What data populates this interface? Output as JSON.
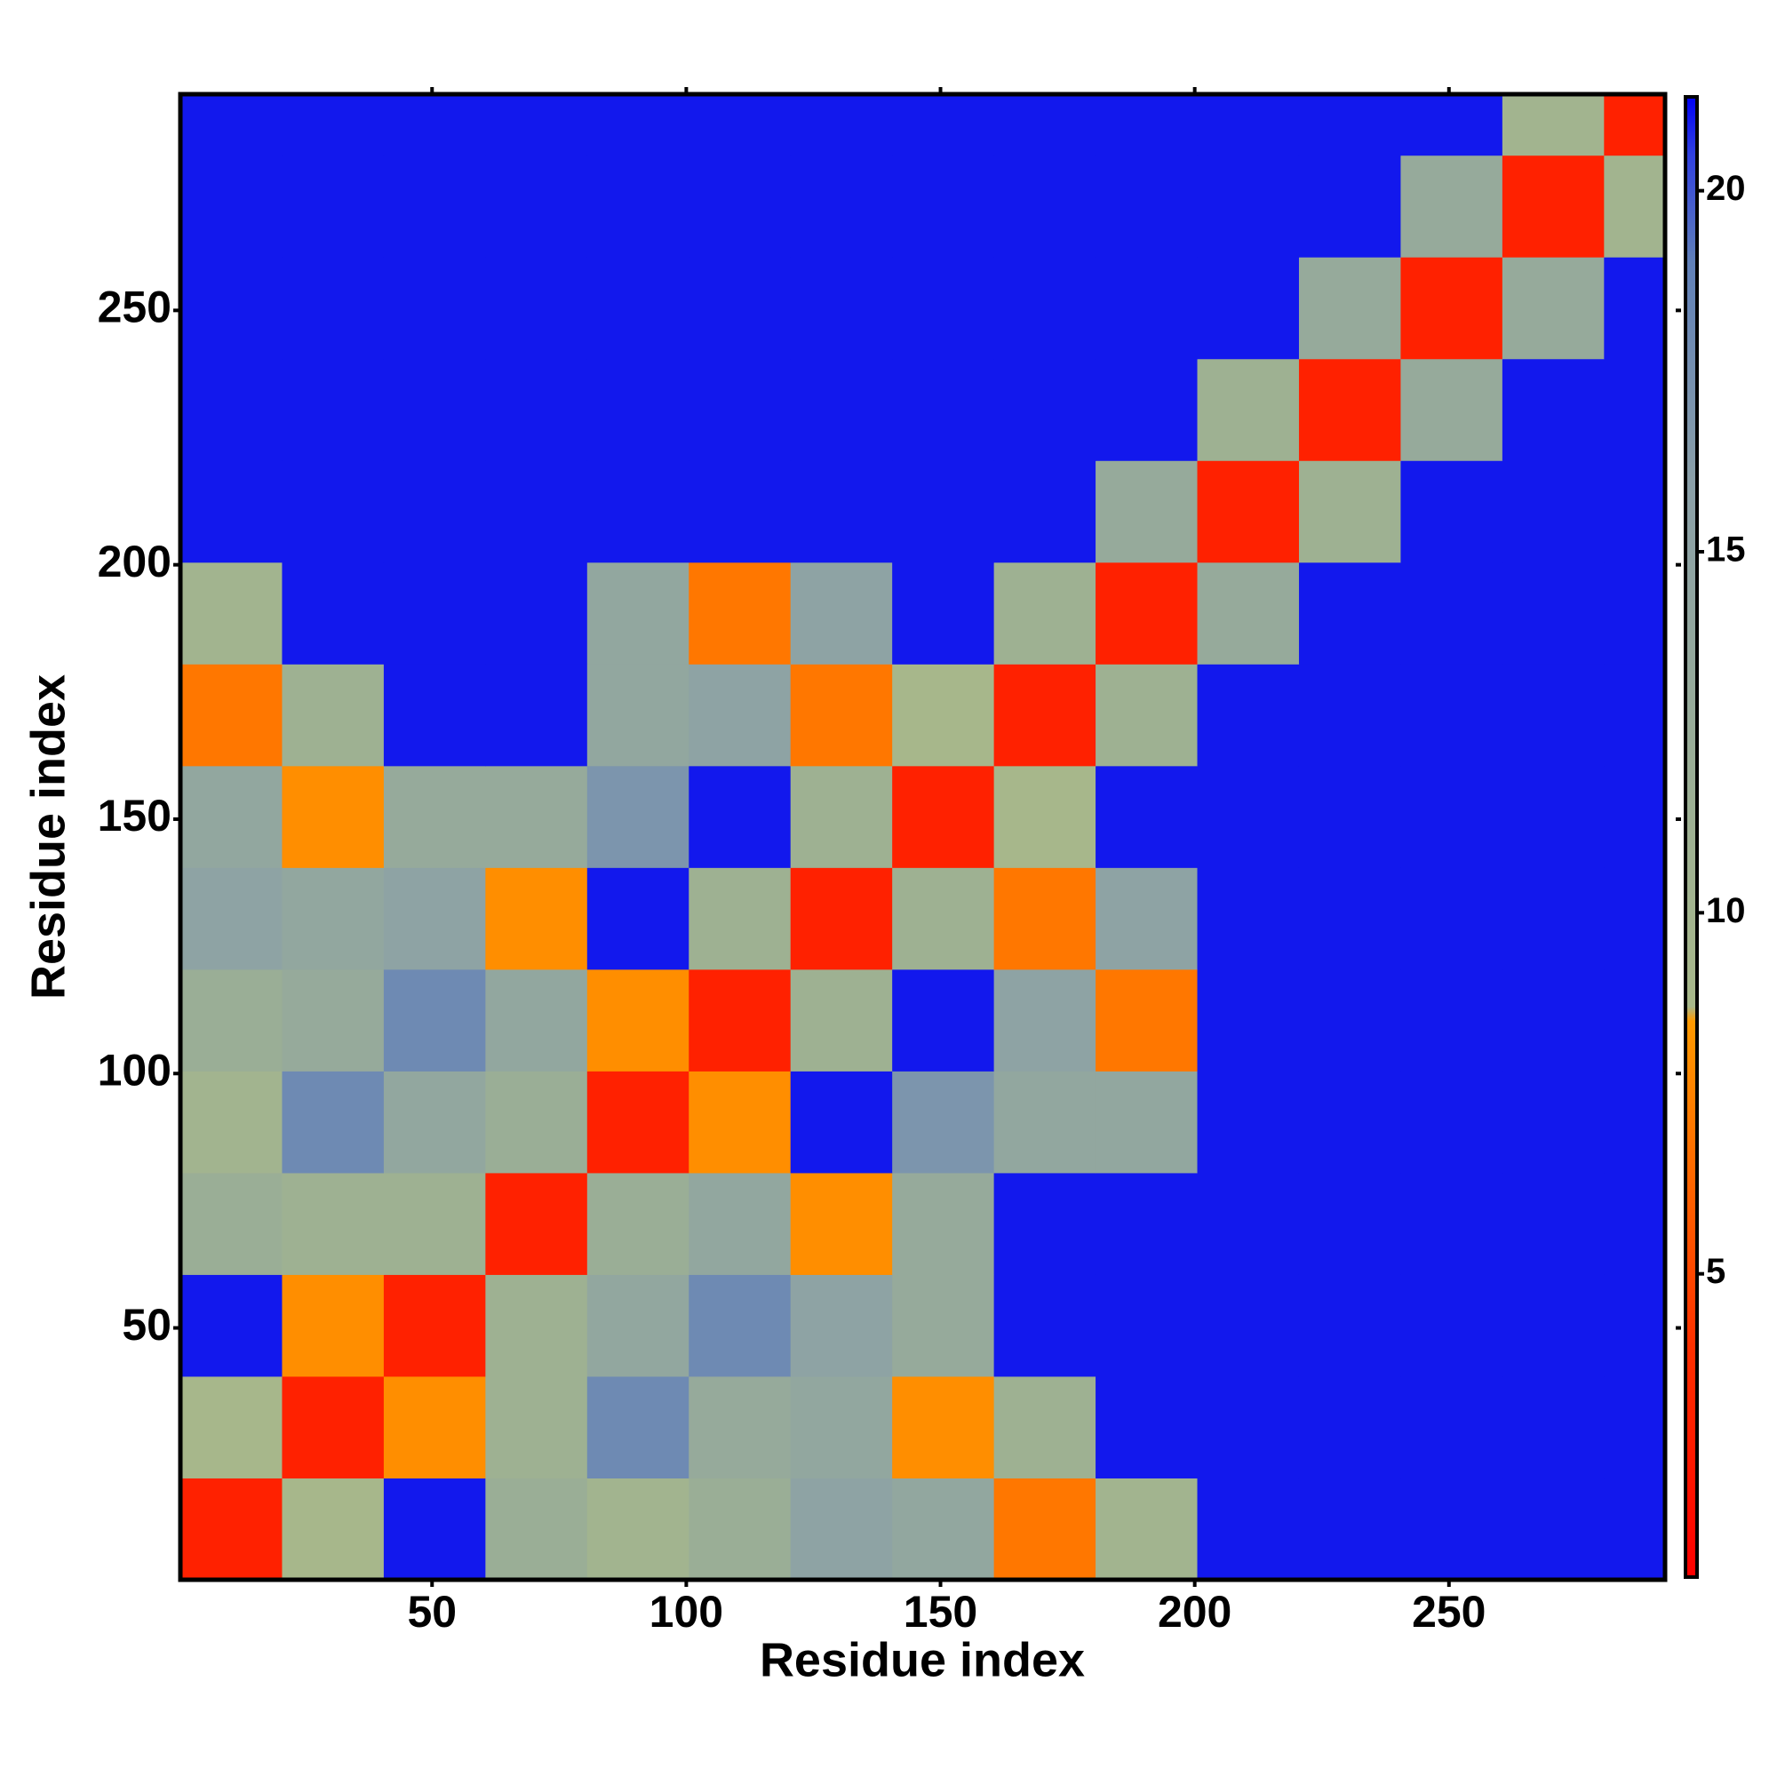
{
  "chart_data": {
    "type": "heatmap",
    "x_label": "Residue index",
    "y_label": "Residue index",
    "xbins": [
      0.5,
      20.5,
      40.5,
      60.5,
      80.5,
      100.5,
      120.5,
      140.5,
      160.5,
      180.5,
      200.5,
      220.5,
      240.5,
      260.5,
      280.5,
      292.5
    ],
    "ybins": [
      0.5,
      20.5,
      40.5,
      60.5,
      80.5,
      100.5,
      120.5,
      140.5,
      160.5,
      180.5,
      200.5,
      220.5,
      240.5,
      260.5,
      280.5,
      292.5
    ],
    "z": [
      [
        3,
        9,
        21,
        12,
        10,
        12,
        15,
        14,
        7,
        10,
        21,
        21,
        21,
        21,
        21
      ],
      [
        9,
        3,
        8,
        11,
        18,
        13,
        14,
        8,
        11,
        21,
        21,
        21,
        21,
        21,
        21
      ],
      [
        21,
        8,
        3,
        11,
        14,
        18,
        15,
        13,
        21,
        21,
        21,
        21,
        21,
        21,
        21
      ],
      [
        12,
        11,
        11,
        3,
        12,
        14,
        8,
        13,
        21,
        21,
        21,
        21,
        21,
        21,
        21
      ],
      [
        10,
        18,
        14,
        12,
        3,
        8,
        21,
        17,
        14,
        14,
        21,
        21,
        21,
        21,
        21
      ],
      [
        12,
        13,
        18,
        14,
        8,
        3,
        11,
        21,
        15,
        7,
        21,
        21,
        21,
        21,
        21
      ],
      [
        15,
        14,
        15,
        8,
        21,
        11,
        3,
        11,
        7,
        15,
        21,
        21,
        21,
        21,
        21
      ],
      [
        14,
        8,
        13,
        13,
        17,
        21,
        11,
        3,
        9,
        21,
        21,
        21,
        21,
        21,
        21
      ],
      [
        7,
        11,
        21,
        21,
        14,
        15,
        7,
        9,
        3,
        11,
        21,
        21,
        21,
        21,
        21
      ],
      [
        10,
        21,
        21,
        21,
        14,
        7,
        15,
        21,
        11,
        3,
        13,
        21,
        21,
        21,
        21
      ],
      [
        21,
        21,
        21,
        21,
        21,
        21,
        21,
        21,
        21,
        13,
        3,
        11,
        21,
        21,
        21
      ],
      [
        21,
        21,
        21,
        21,
        21,
        21,
        21,
        21,
        21,
        21,
        11,
        3,
        13,
        21,
        21
      ],
      [
        21,
        21,
        21,
        21,
        21,
        21,
        21,
        21,
        21,
        21,
        21,
        13,
        3,
        13,
        21
      ],
      [
        21,
        21,
        21,
        21,
        21,
        21,
        21,
        21,
        21,
        21,
        21,
        21,
        13,
        3,
        10
      ],
      [
        21,
        21,
        21,
        21,
        21,
        21,
        21,
        21,
        21,
        21,
        21,
        21,
        21,
        10,
        3
      ]
    ],
    "xlim": [
      0.5,
      292.5
    ],
    "ylim": [
      0.5,
      292.5
    ],
    "xticks": [
      50,
      100,
      150,
      200,
      250
    ],
    "yticks": [
      50,
      100,
      150,
      200,
      250
    ],
    "zlim": [
      0.8,
      21.3
    ],
    "zticks": [
      5,
      10,
      15,
      20
    ],
    "colorscale": [
      [
        0.8,
        "#ff0000"
      ],
      [
        4,
        "#ff3000"
      ],
      [
        8.5,
        "#ff9a00"
      ],
      [
        8.7,
        "#a8b88a"
      ],
      [
        12,
        "#9aae96"
      ],
      [
        16,
        "#8a9fa8"
      ],
      [
        19,
        "#6080b8"
      ],
      [
        20.5,
        "#3040e0"
      ],
      [
        21.3,
        "#0000f5"
      ]
    ]
  }
}
